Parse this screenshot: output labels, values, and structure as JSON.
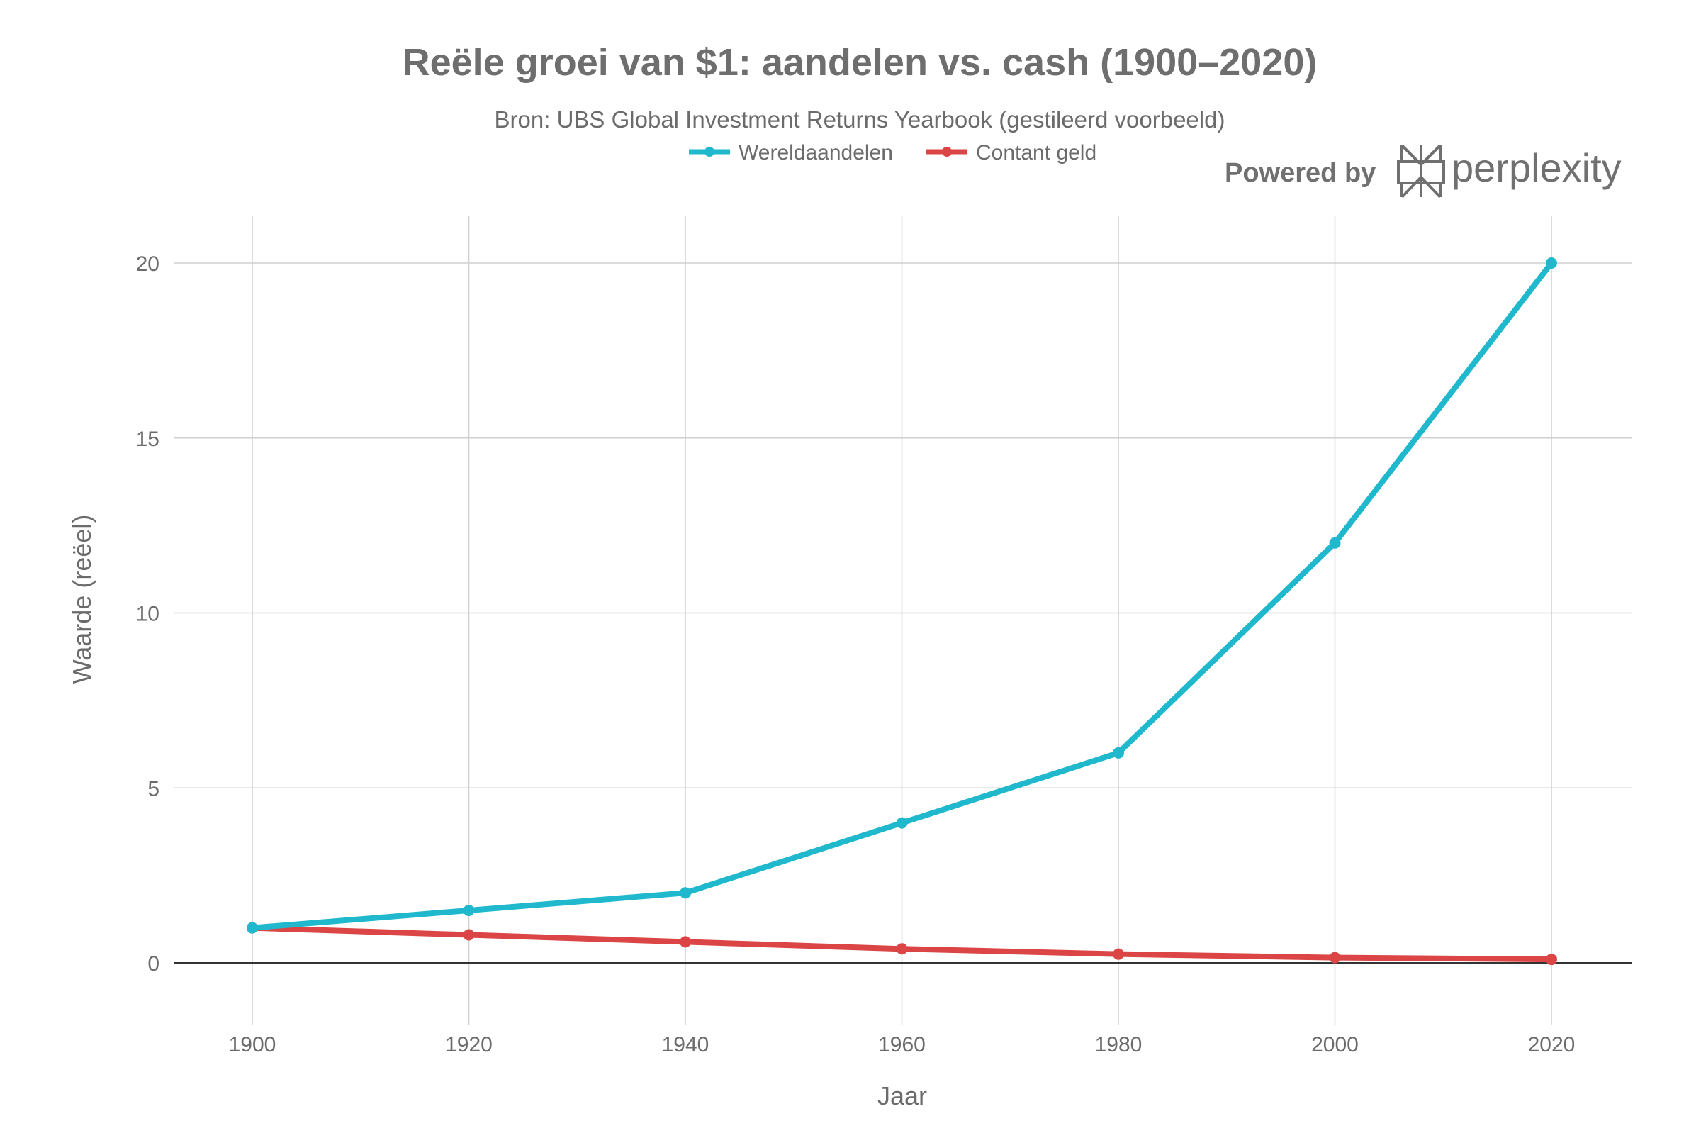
{
  "chart_data": {
    "type": "line",
    "title": "Reële groei van $1: aandelen vs. cash (1900–2020)",
    "subtitle": "Bron: UBS Global Investment Returns Yearbook (gestileerd voorbeeld)",
    "xlabel": "Jaar",
    "ylabel": "Waarde (reëel)",
    "x": [
      1900,
      1920,
      1940,
      1960,
      1980,
      2000,
      2020
    ],
    "xlim": [
      1892,
      2027
    ],
    "ylim": [
      -1.5,
      20.8
    ],
    "xticks": [
      "1900",
      "1920",
      "1940",
      "1960",
      "1980",
      "2000",
      "2020"
    ],
    "yticks": [
      "0",
      "5",
      "10",
      "15",
      "20"
    ],
    "grid": true,
    "legend_position": "top-center",
    "series": [
      {
        "name": "Wereldaandelen",
        "color": "#1fb8cd",
        "values": [
          1,
          1.5,
          2,
          4,
          6,
          12,
          20
        ]
      },
      {
        "name": "Contant geld",
        "color": "#db4545",
        "values": [
          1,
          0.8,
          0.6,
          0.4,
          0.25,
          0.15,
          0.1
        ]
      }
    ]
  },
  "branding": {
    "powered_by": "Powered by",
    "logo_text": "perplexity"
  }
}
